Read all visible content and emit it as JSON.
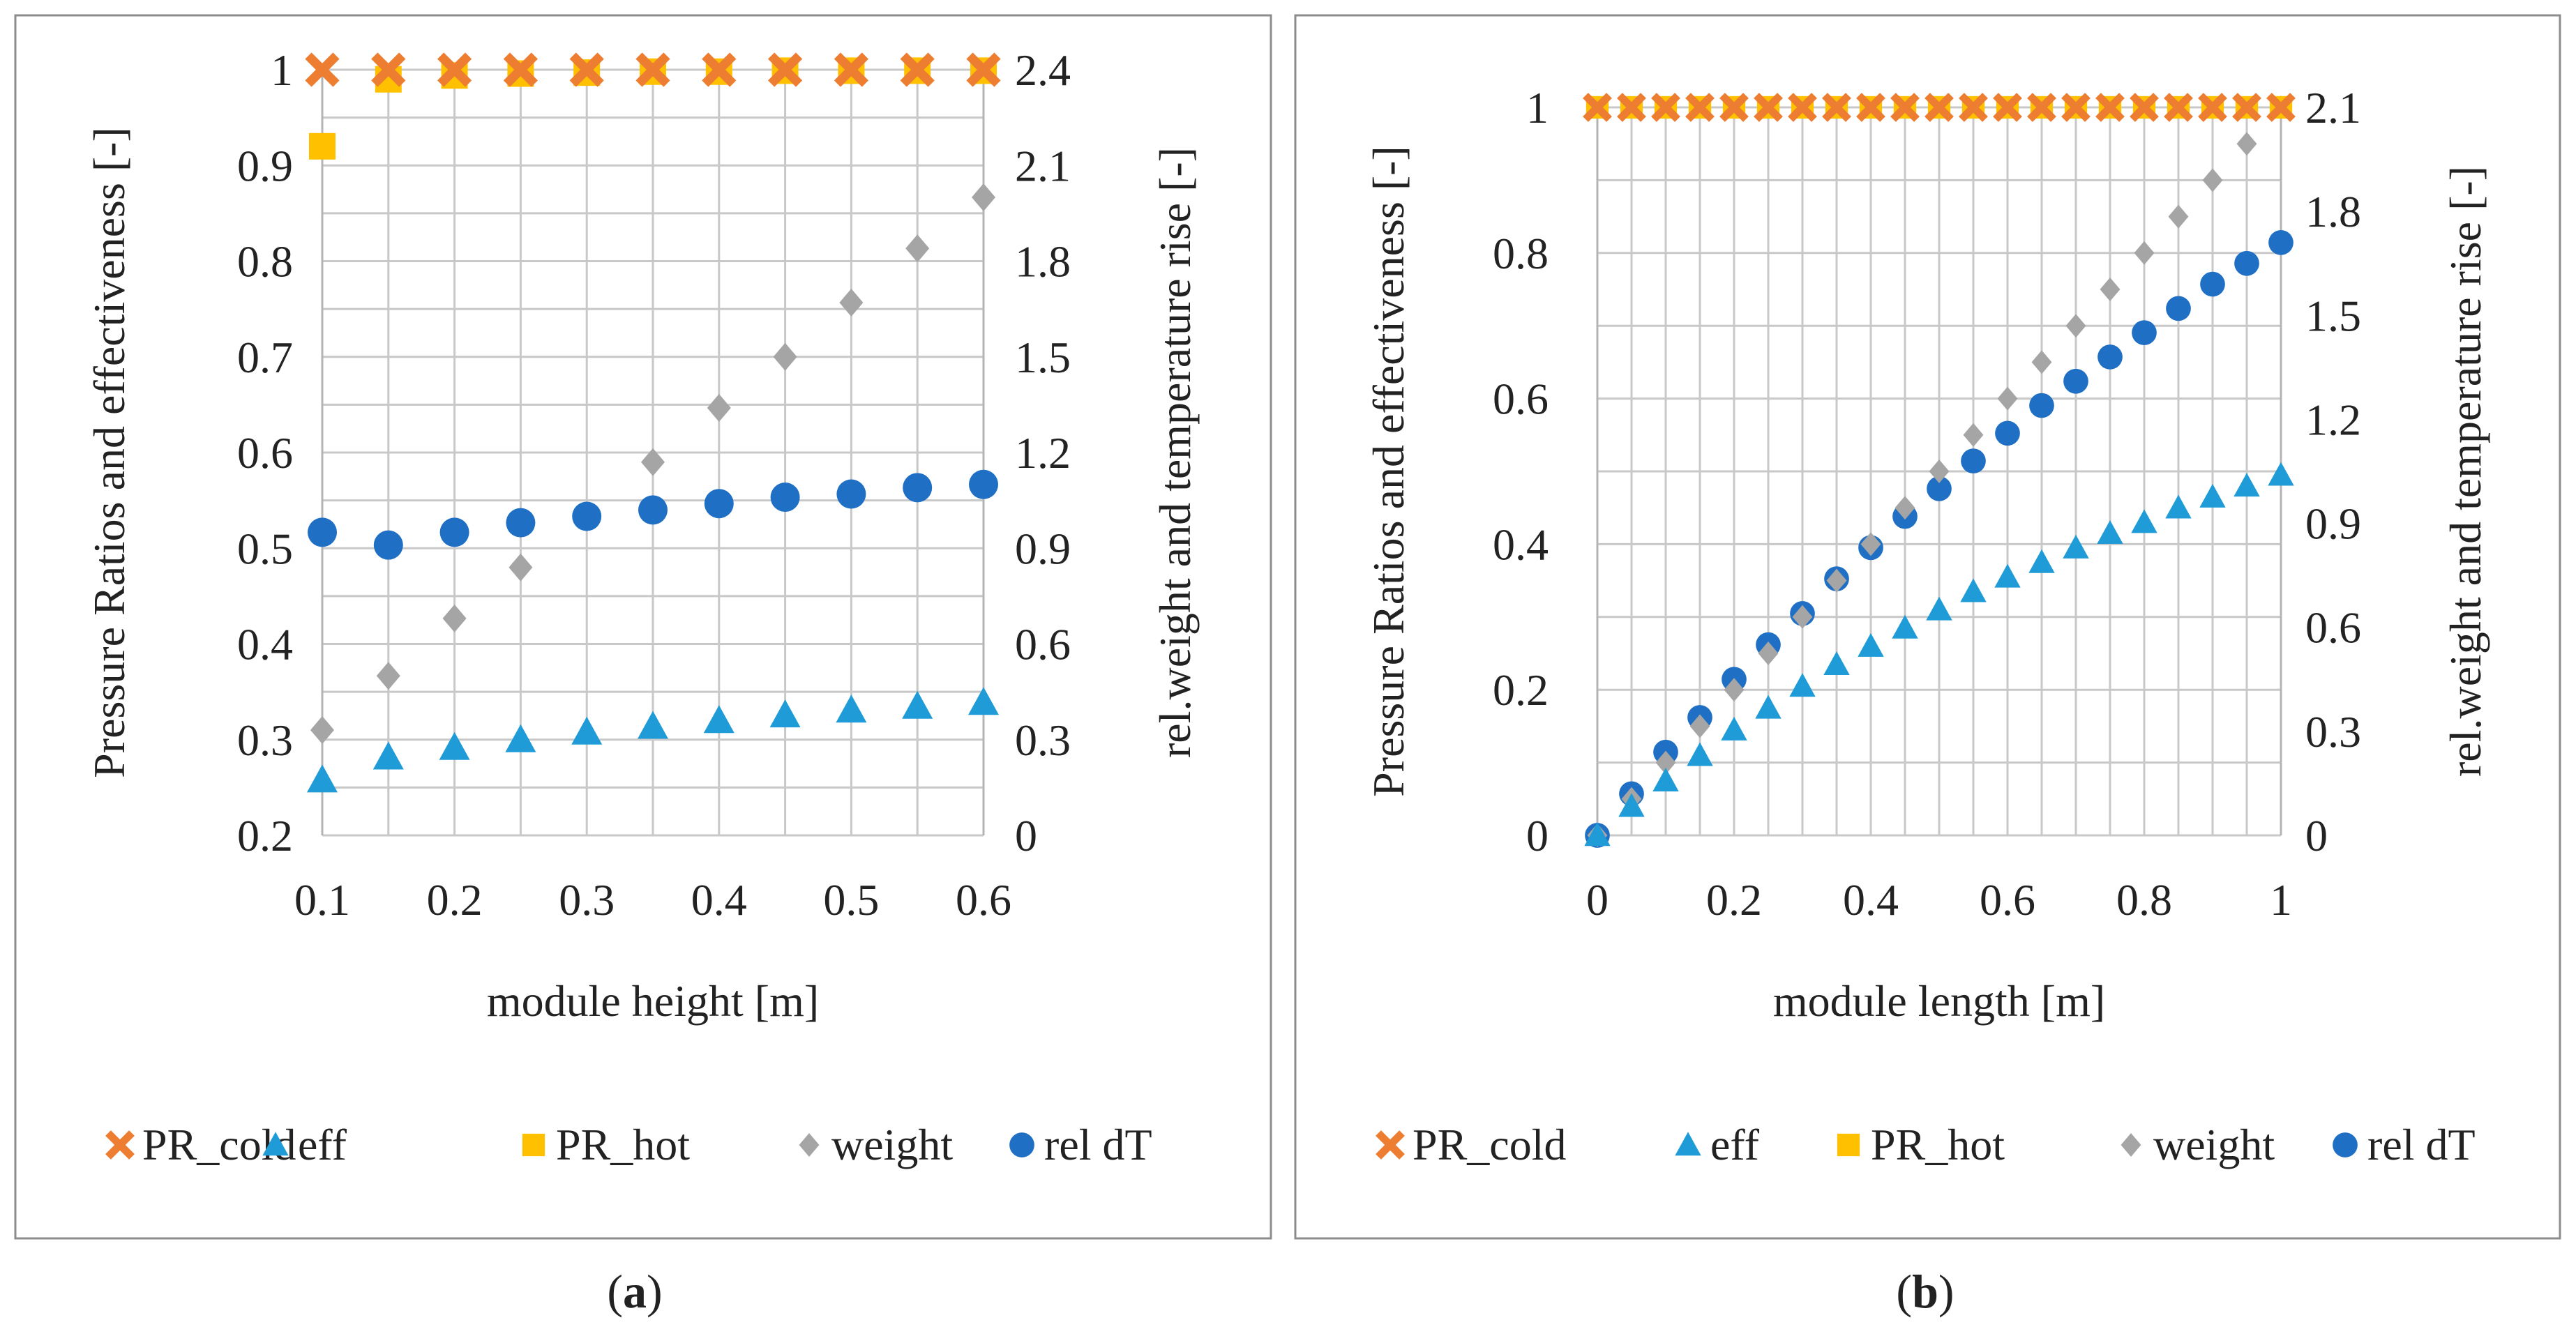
{
  "colors": {
    "PR_cold": "#ed7d31",
    "eff": "#1f9bd7",
    "PR_hot": "#ffc000",
    "weight": "#a5a5a5",
    "rel dT": "#1f6fc5"
  },
  "chart_data": [
    {
      "type": "scatter",
      "panel": "a",
      "caption_open": "(",
      "caption_letter": "a",
      "caption_close": ")",
      "xlabel": "module height [m]",
      "ylabel": "Pressure Ratios and effectiveness [-]",
      "y2label": "rel.weight and temperature rise [-]",
      "xlim": [
        0.1,
        0.6
      ],
      "ylim": [
        0.2,
        1.0
      ],
      "y2lim": [
        0,
        2.4
      ],
      "xticks": [
        "0.1",
        "0.2",
        "0.3",
        "0.4",
        "0.5",
        "0.6"
      ],
      "yticks": [
        "0.2",
        "0.3",
        "0.4",
        "0.5",
        "0.6",
        "0.7",
        "0.8",
        "0.9",
        "1"
      ],
      "y2ticks": [
        "0",
        "0.3",
        "0.6",
        "0.9",
        "1.2",
        "1.5",
        "1.8",
        "2.1",
        "2.4"
      ],
      "grid": true,
      "legend_position": "bottom",
      "x": [
        0.1,
        0.15,
        0.2,
        0.25,
        0.3,
        0.35,
        0.4,
        0.45,
        0.5,
        0.55,
        0.6
      ],
      "series": [
        {
          "name": "PR_cold",
          "axis": "left",
          "marker": "x",
          "values": [
            1.0,
            1.0,
            1.0,
            1.0,
            1.0,
            1.0,
            1.0,
            1.0,
            1.0,
            1.0,
            1.0
          ]
        },
        {
          "name": "eff",
          "axis": "left",
          "marker": "triangle",
          "values": [
            0.258,
            0.282,
            0.292,
            0.3,
            0.308,
            0.314,
            0.32,
            0.326,
            0.331,
            0.335,
            0.339
          ]
        },
        {
          "name": "PR_hot",
          "axis": "left",
          "marker": "square",
          "values": [
            0.92,
            0.99,
            0.994,
            0.996,
            0.997,
            0.998,
            0.998,
            0.999,
            0.999,
            0.999,
            0.999
          ]
        },
        {
          "name": "weight",
          "axis": "right",
          "marker": "diamond",
          "values": [
            0.33,
            0.5,
            0.68,
            0.84,
            null,
            1.17,
            1.34,
            1.5,
            1.67,
            1.84,
            2.0
          ]
        },
        {
          "name": "rel dT",
          "axis": "right",
          "marker": "circle",
          "values": [
            0.95,
            0.91,
            0.95,
            0.98,
            1.0,
            1.02,
            1.04,
            1.06,
            1.07,
            1.09,
            1.1
          ]
        }
      ]
    },
    {
      "type": "scatter",
      "panel": "b",
      "caption_open": "(",
      "caption_letter": "b",
      "caption_close": ")",
      "xlabel": "module length [m]",
      "ylabel": "Pressure Ratios and effectiveness [-]",
      "y2label": "rel.weight and temperature rise [-]",
      "xlim": [
        0,
        1.0
      ],
      "ylim": [
        0,
        1.0
      ],
      "y2lim": [
        0,
        2.1
      ],
      "xticks": [
        "0",
        "0.2",
        "0.4",
        "0.6",
        "0.8",
        "1"
      ],
      "yticks": [
        "0",
        "0.2",
        "0.4",
        "0.6",
        "0.8",
        "1"
      ],
      "y2ticks": [
        "0",
        "0.3",
        "0.6",
        "0.9",
        "1.2",
        "1.5",
        "1.8",
        "2.1"
      ],
      "grid": true,
      "legend_position": "bottom",
      "x": [
        0,
        0.05,
        0.1,
        0.15,
        0.2,
        0.25,
        0.3,
        0.35,
        0.4,
        0.45,
        0.5,
        0.55,
        0.6,
        0.65,
        0.7,
        0.75,
        0.8,
        0.85,
        0.9,
        0.95,
        1.0
      ],
      "series": [
        {
          "name": "PR_cold",
          "axis": "left",
          "marker": "x",
          "values": [
            1,
            1,
            1,
            1,
            1,
            1,
            1,
            1,
            1,
            1,
            1,
            1,
            1,
            1,
            1,
            1,
            1,
            1,
            1,
            1,
            1
          ]
        },
        {
          "name": "eff",
          "axis": "left",
          "marker": "triangle",
          "values": [
            0,
            0.04,
            0.075,
            0.11,
            0.145,
            0.175,
            0.205,
            0.235,
            0.26,
            0.285,
            0.31,
            0.335,
            0.355,
            0.375,
            0.395,
            0.415,
            0.43,
            0.45,
            0.465,
            0.48,
            0.495
          ]
        },
        {
          "name": "PR_hot",
          "axis": "left",
          "marker": "square",
          "values": [
            1,
            1,
            1,
            1,
            1,
            1,
            1,
            1,
            1,
            1,
            1,
            1,
            1,
            1,
            1,
            1,
            1,
            1,
            1,
            1,
            1
          ]
        },
        {
          "name": "weight",
          "axis": "right",
          "marker": "diamond",
          "values": [
            0,
            0.105,
            0.21,
            0.315,
            0.42,
            0.525,
            0.63,
            0.735,
            0.84,
            0.945,
            1.05,
            1.155,
            1.26,
            1.365,
            1.47,
            1.575,
            1.68,
            1.785,
            1.89,
            1.995,
            2.1
          ]
        },
        {
          "name": "rel dT",
          "axis": "right",
          "marker": "circle",
          "values": [
            0,
            0.12,
            0.24,
            0.34,
            0.45,
            0.55,
            0.64,
            0.74,
            0.83,
            0.92,
            1.0,
            1.08,
            1.16,
            1.24,
            1.31,
            1.38,
            1.45,
            1.52,
            1.59,
            1.65,
            1.71
          ]
        }
      ]
    }
  ]
}
